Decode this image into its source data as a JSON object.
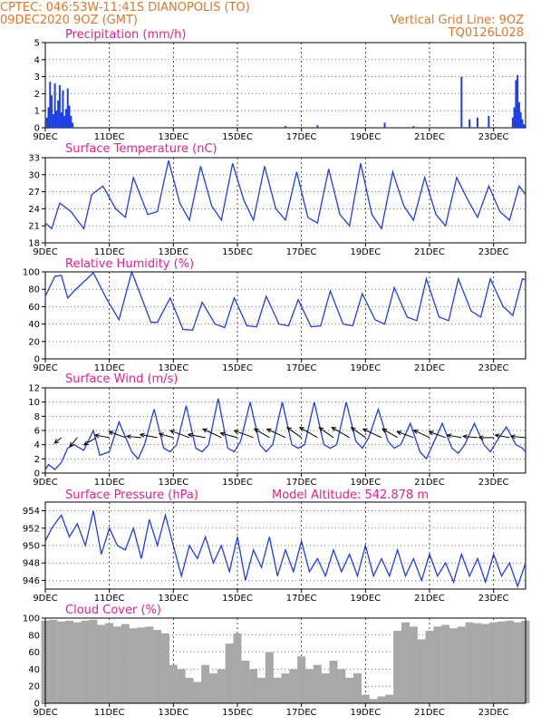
{
  "header": {
    "line1_left": "CPTEC:   046:53W-11:41S   DIANOPOLIS (TO)",
    "line2_left": "09DEC2020 9OZ (GMT)",
    "line1_right": "Vertical Grid Line: 9OZ",
    "line2_right": "TQ0126L028"
  },
  "colors": {
    "header": "#e0782a",
    "title": "#e0238f",
    "series": "#1f3fe6",
    "cloud": "#a8a8a8",
    "arrow": "#000000"
  },
  "chart_data": [
    {
      "id": "precip",
      "type": "bar",
      "title": "Precipitation (mm/h)",
      "ylim": [
        0,
        5
      ],
      "yticks": [
        0,
        1,
        2,
        3,
        4,
        5
      ],
      "grid": "vertical-and-horizontal",
      "xlim": [
        0,
        15
      ],
      "xticks_at": [
        0,
        2,
        4,
        6,
        8,
        10,
        12,
        14
      ],
      "xtick_labels": [
        "9DEC",
        "11DEC",
        "13DEC",
        "15DEC",
        "17DEC",
        "19DEC",
        "21DEC",
        "23DEC"
      ],
      "color": "#1f3fe6",
      "x": [
        0.05,
        0.1,
        0.15,
        0.2,
        0.25,
        0.3,
        0.35,
        0.4,
        0.45,
        0.5,
        0.55,
        0.6,
        0.65,
        0.7,
        0.75,
        0.8,
        0.85,
        7.5,
        8.5,
        10.6,
        11.5,
        13.0,
        13.25,
        13.5,
        13.85,
        14.6,
        14.65,
        14.7,
        14.75,
        14.8,
        14.85,
        14.9,
        14.95
      ],
      "values": [
        0.6,
        1.2,
        2.7,
        1.9,
        0.8,
        2.6,
        1.0,
        1.6,
        2.5,
        0.9,
        2.2,
        0.7,
        1.1,
        2.3,
        1.3,
        0.7,
        0.3,
        0.1,
        0.15,
        0.3,
        0.1,
        3.0,
        0.5,
        0.6,
        0.7,
        0.6,
        1.2,
        2.8,
        3.1,
        1.5,
        0.9,
        0.5,
        0.2
      ]
    },
    {
      "id": "temp",
      "type": "line",
      "title": "Surface Temperature (nC)",
      "ylim": [
        18,
        33
      ],
      "yticks": [
        18,
        21,
        24,
        27,
        30,
        33
      ],
      "grid": "vertical-and-horizontal",
      "xlim": [
        0,
        15
      ],
      "xticks_at": [
        0,
        2,
        4,
        6,
        8,
        10,
        12,
        14
      ],
      "xtick_labels": [
        "9DEC",
        "11DEC",
        "13DEC",
        "15DEC",
        "17DEC",
        "19DEC",
        "21DEC",
        "23DEC"
      ],
      "color": "#1f3fe6",
      "x": [
        0.0,
        0.2,
        0.45,
        0.8,
        1.2,
        1.45,
        1.8,
        2.2,
        2.5,
        2.75,
        3.2,
        3.5,
        3.85,
        4.2,
        4.5,
        4.85,
        5.2,
        5.5,
        5.85,
        6.2,
        6.5,
        6.85,
        7.2,
        7.5,
        7.85,
        8.2,
        8.5,
        8.85,
        9.2,
        9.5,
        9.85,
        10.2,
        10.5,
        10.85,
        11.2,
        11.5,
        11.85,
        12.2,
        12.5,
        12.85,
        13.2,
        13.5,
        13.85,
        14.2,
        14.5,
        14.8,
        15.0
      ],
      "values": [
        21.5,
        20.5,
        25.0,
        23.5,
        20.5,
        26.5,
        28.0,
        24.0,
        22.5,
        29.5,
        23.0,
        23.5,
        32.5,
        25.0,
        22.0,
        31.5,
        24.5,
        22.0,
        32.0,
        25.5,
        22.0,
        31.5,
        24.0,
        22.0,
        30.5,
        22.5,
        21.5,
        31.0,
        23.0,
        21.0,
        32.0,
        23.0,
        20.5,
        30.5,
        24.5,
        22.0,
        29.5,
        23.0,
        21.0,
        29.5,
        25.5,
        22.5,
        28.0,
        23.5,
        22.0,
        28.0,
        26.5
      ]
    },
    {
      "id": "rh",
      "type": "line",
      "title": "Relative Humidity (%)",
      "ylim": [
        0,
        100
      ],
      "yticks": [
        0,
        20,
        40,
        60,
        80,
        100
      ],
      "grid": "vertical-and-horizontal",
      "xlim": [
        0,
        15
      ],
      "xticks_at": [
        0,
        2,
        4,
        6,
        8,
        10,
        12,
        14
      ],
      "xtick_labels": [
        "9DEC",
        "11DEC",
        "13DEC",
        "15DEC",
        "17DEC",
        "19DEC",
        "21DEC",
        "23DEC"
      ],
      "color": "#1f3fe6",
      "x": [
        0.0,
        0.3,
        0.5,
        0.7,
        0.9,
        1.5,
        1.9,
        2.3,
        2.7,
        3.3,
        3.5,
        3.9,
        4.3,
        4.6,
        4.9,
        5.3,
        5.6,
        5.9,
        6.3,
        6.6,
        6.9,
        7.3,
        7.6,
        7.9,
        8.3,
        8.6,
        8.9,
        9.3,
        9.6,
        9.9,
        10.3,
        10.6,
        10.9,
        11.3,
        11.6,
        11.9,
        12.3,
        12.6,
        12.9,
        13.3,
        13.6,
        13.9,
        14.3,
        14.6,
        14.9,
        15.0
      ],
      "values": [
        72.0,
        95.0,
        96.0,
        70.0,
        78.0,
        99.0,
        70.0,
        45.0,
        100.0,
        42.0,
        42.0,
        70.0,
        34.0,
        33.0,
        65.0,
        40.0,
        36.0,
        70.0,
        38.0,
        37.0,
        72.0,
        40.0,
        38.0,
        68.0,
        37.0,
        38.0,
        78.0,
        40.0,
        38.0,
        75.0,
        45.0,
        40.0,
        82.0,
        48.0,
        44.0,
        92.0,
        48.0,
        44.0,
        92.0,
        55.0,
        48.0,
        92.0,
        60.0,
        50.0,
        92.0,
        91.0
      ]
    },
    {
      "id": "wind",
      "type": "line",
      "title": "Surface Wind (m/s)",
      "ylim": [
        0,
        12
      ],
      "yticks": [
        0,
        2,
        4,
        6,
        8,
        10,
        12
      ],
      "grid": "vertical-and-horizontal",
      "xlim": [
        0,
        15
      ],
      "xticks_at": [
        0,
        2,
        4,
        6,
        8,
        10,
        12,
        14
      ],
      "xtick_labels": [
        "9DEC",
        "11DEC",
        "13DEC",
        "15DEC",
        "17DEC",
        "19DEC",
        "21DEC",
        "23DEC"
      ],
      "color": "#1f3fe6",
      "x": [
        0.0,
        0.1,
        0.3,
        0.5,
        0.7,
        0.9,
        1.2,
        1.5,
        1.7,
        2.0,
        2.3,
        2.7,
        2.9,
        3.1,
        3.4,
        3.7,
        3.9,
        4.1,
        4.4,
        4.7,
        4.9,
        5.1,
        5.4,
        5.7,
        5.9,
        6.1,
        6.4,
        6.7,
        6.9,
        7.1,
        7.4,
        7.7,
        7.9,
        8.1,
        8.4,
        8.7,
        8.9,
        9.1,
        9.4,
        9.7,
        9.9,
        10.1,
        10.4,
        10.7,
        10.9,
        11.1,
        11.4,
        11.7,
        11.9,
        12.1,
        12.4,
        12.7,
        12.9,
        13.1,
        13.4,
        13.7,
        13.9,
        14.1,
        14.4,
        14.7,
        14.9,
        15.0
      ],
      "values": [
        0.5,
        1.2,
        0.5,
        1.5,
        3.5,
        4.0,
        3.2,
        6.0,
        2.5,
        3.0,
        7.2,
        3.0,
        2.0,
        4.0,
        9.0,
        3.5,
        3.0,
        4.0,
        9.5,
        3.5,
        3.0,
        4.0,
        10.5,
        3.5,
        3.0,
        4.5,
        10.0,
        4.0,
        3.0,
        4.0,
        10.0,
        4.0,
        3.5,
        4.0,
        10.0,
        4.0,
        3.5,
        4.0,
        10.0,
        4.5,
        3.5,
        5.0,
        9.0,
        4.5,
        3.5,
        4.0,
        7.0,
        3.0,
        2.0,
        4.0,
        7.0,
        3.5,
        2.8,
        4.0,
        7.0,
        4.0,
        3.0,
        4.5,
        6.5,
        4.0,
        3.5,
        3.0
      ]
    },
    {
      "id": "pressure",
      "type": "line",
      "title": "Surface Pressure (hPa)",
      "annotation": "Model Altitude: 542.878  m",
      "ylim": [
        945,
        955
      ],
      "yticks": [
        946,
        948,
        950,
        952,
        954
      ],
      "grid": "vertical-and-horizontal",
      "xlim": [
        0,
        15
      ],
      "xticks_at": [
        0,
        2,
        4,
        6,
        8,
        10,
        12,
        14
      ],
      "xtick_labels": [
        "9DEC",
        "11DEC",
        "13DEC",
        "15DEC",
        "17DEC",
        "19DEC",
        "21DEC",
        "23DEC"
      ],
      "color": "#1f3fe6",
      "x": [
        0.0,
        0.2,
        0.5,
        0.75,
        1.0,
        1.25,
        1.5,
        1.75,
        2.0,
        2.25,
        2.5,
        2.75,
        3.0,
        3.25,
        3.5,
        3.75,
        4.0,
        4.25,
        4.5,
        4.75,
        5.0,
        5.25,
        5.5,
        5.75,
        6.0,
        6.25,
        6.5,
        6.75,
        7.0,
        7.25,
        7.5,
        7.75,
        8.0,
        8.25,
        8.5,
        8.75,
        9.0,
        9.25,
        9.5,
        9.75,
        10.0,
        10.25,
        10.5,
        10.75,
        11.0,
        11.25,
        11.5,
        11.75,
        12.0,
        12.25,
        12.5,
        12.75,
        13.0,
        13.25,
        13.5,
        13.75,
        14.0,
        14.25,
        14.5,
        14.75,
        15.0
      ],
      "values": [
        950.5,
        952.0,
        953.5,
        951.0,
        952.5,
        950.0,
        954.0,
        949.0,
        952.0,
        950.0,
        949.5,
        952.0,
        948.5,
        953.0,
        950.0,
        953.5,
        950.0,
        946.5,
        950.0,
        948.5,
        951.0,
        948.0,
        950.0,
        947.0,
        951.0,
        946.0,
        949.5,
        947.5,
        951.0,
        946.5,
        949.5,
        947.0,
        950.5,
        947.0,
        948.5,
        946.5,
        949.5,
        947.0,
        949.0,
        946.5,
        950.0,
        946.5,
        948.5,
        946.5,
        949.5,
        946.5,
        948.5,
        946.0,
        949.0,
        946.5,
        948.0,
        945.8,
        949.0,
        946.5,
        948.5,
        945.8,
        949.0,
        946.5,
        948.0,
        945.3,
        948.0
      ]
    },
    {
      "id": "cloud",
      "type": "bar",
      "title": "Cloud Cover (%)",
      "ylim": [
        0,
        100
      ],
      "yticks": [
        0,
        20,
        40,
        60,
        80,
        100
      ],
      "grid": "vertical-and-horizontal",
      "xlim": [
        0,
        15
      ],
      "xticks_at": [
        0,
        2,
        4,
        6,
        8,
        10,
        12,
        14
      ],
      "xtick_labels": [
        "9DEC",
        "11DEC",
        "13DEC",
        "15DEC",
        "17DEC",
        "19DEC",
        "21DEC",
        "23DEC"
      ],
      "color": "#a8a8a8",
      "x": [
        0.0,
        0.25,
        0.5,
        0.75,
        1.0,
        1.25,
        1.5,
        1.75,
        2.0,
        2.25,
        2.5,
        2.75,
        3.0,
        3.25,
        3.5,
        3.75,
        4.0,
        4.25,
        4.5,
        4.75,
        5.0,
        5.25,
        5.5,
        5.75,
        6.0,
        6.25,
        6.5,
        6.75,
        7.0,
        7.25,
        7.5,
        7.75,
        8.0,
        8.25,
        8.5,
        8.75,
        9.0,
        9.25,
        9.5,
        9.75,
        10.0,
        10.25,
        10.5,
        10.75,
        11.0,
        11.25,
        11.5,
        11.75,
        12.0,
        12.25,
        12.5,
        12.75,
        13.0,
        13.25,
        13.5,
        13.75,
        14.0,
        14.25,
        14.5,
        14.75,
        15.0
      ],
      "values": [
        97,
        98,
        96,
        97,
        95,
        97,
        98,
        92,
        94,
        90,
        93,
        88,
        89,
        90,
        86,
        82,
        45,
        40,
        30,
        25,
        45,
        35,
        40,
        70,
        82,
        50,
        40,
        30,
        60,
        30,
        35,
        40,
        55,
        40,
        45,
        35,
        50,
        40,
        30,
        35,
        10,
        5,
        8,
        10,
        85,
        95,
        90,
        75,
        85,
        90,
        92,
        88,
        90,
        95,
        94,
        93,
        95,
        96,
        97,
        95,
        97
      ]
    },
    {
      "id": "wind_vectors",
      "type": "vector",
      "note_units": "direction in degrees (meteorological, from), speed in m/s",
      "x": [
        0.5,
        1.0,
        1.6,
        2.0,
        2.5,
        3.0,
        3.5,
        4.0,
        4.5,
        5.0,
        5.5,
        6.0,
        6.5,
        7.0,
        7.5,
        8.0,
        8.5,
        9.0,
        9.5,
        10.0,
        10.5,
        11.0,
        11.5,
        12.0,
        12.5,
        13.0,
        13.5,
        14.0,
        14.5,
        15.0
      ],
      "direction": [
        50,
        40,
        60,
        100,
        110,
        95,
        100,
        105,
        110,
        100,
        115,
        105,
        110,
        120,
        115,
        125,
        120,
        125,
        120,
        125,
        115,
        120,
        110,
        115,
        110,
        100,
        95,
        90,
        100,
        95
      ],
      "speed": [
        3,
        4,
        5,
        5,
        6,
        5,
        6,
        5,
        7,
        6,
        7,
        6,
        7,
        6,
        7,
        6,
        7,
        6,
        7,
        6,
        7,
        6,
        6,
        6,
        6,
        5,
        5,
        5,
        5,
        5
      ]
    }
  ]
}
